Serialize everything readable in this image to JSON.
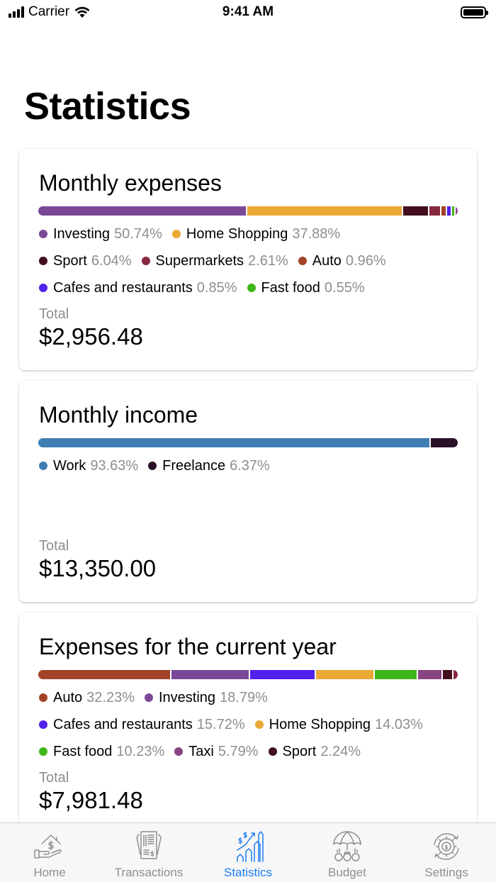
{
  "status_bar": {
    "carrier": "Carrier",
    "time": "9:41 AM"
  },
  "page": {
    "title": "Statistics"
  },
  "cards": [
    {
      "title": "Monthly expenses",
      "segments": [
        {
          "name": "Investing",
          "pct": 50.74,
          "color": "#7b4898"
        },
        {
          "name": "Home Shopping",
          "pct": 37.88,
          "color": "#eaa834"
        },
        {
          "name": "Sport",
          "pct": 6.04,
          "color": "#420f1e"
        },
        {
          "name": "Supermarkets",
          "pct": 2.61,
          "color": "#86283f"
        },
        {
          "name": "Auto",
          "pct": 0.96,
          "color": "#a24226"
        },
        {
          "name": "Cafes and restaurants",
          "pct": 0.85,
          "color": "#5221eb"
        },
        {
          "name": "Fast food",
          "pct": 0.55,
          "color": "#3eb518"
        },
        {
          "name": "",
          "pct": 0.37,
          "color": "#8a4a8e"
        }
      ],
      "legend_rows": [
        [
          {
            "name": "Investing",
            "pct_label": "50.74%",
            "color": "#7b4898"
          },
          {
            "name": "Home Shopping",
            "pct_label": "37.88%",
            "color": "#eaa834"
          }
        ],
        [
          {
            "name": "Sport",
            "pct_label": "6.04%",
            "color": "#420f1e"
          },
          {
            "name": "Supermarkets",
            "pct_label": "2.61%",
            "color": "#86283f"
          },
          {
            "name": "Auto",
            "pct_label": "0.96%",
            "color": "#a24226"
          }
        ],
        [
          {
            "name": "Cafes and restaurants",
            "pct_label": "0.85%",
            "color": "#5221eb"
          },
          {
            "name": "Fast food",
            "pct_label": "0.55%",
            "color": "#3eb518"
          }
        ]
      ],
      "total_label": "Total",
      "total_value": "$2,956.48"
    },
    {
      "title": "Monthly income",
      "segments": [
        {
          "name": "Work",
          "pct": 93.63,
          "color": "#3f7db3"
        },
        {
          "name": "Freelance",
          "pct": 6.37,
          "color": "#2a1129"
        }
      ],
      "legend_rows": [
        [
          {
            "name": "Work",
            "pct_label": "93.63%",
            "color": "#3f7db3"
          },
          {
            "name": "Freelance",
            "pct_label": "6.37%",
            "color": "#2a1129"
          }
        ]
      ],
      "total_label": "Total",
      "total_value": "$13,350.00"
    },
    {
      "title": "Expenses for the current year",
      "segments": [
        {
          "name": "Auto",
          "pct": 32.23,
          "color": "#a24226"
        },
        {
          "name": "Investing",
          "pct": 18.79,
          "color": "#7b4898"
        },
        {
          "name": "Cafes and restaurants",
          "pct": 15.72,
          "color": "#5221eb"
        },
        {
          "name": "Home Shopping",
          "pct": 14.03,
          "color": "#eaa834"
        },
        {
          "name": "Fast food",
          "pct": 10.23,
          "color": "#3eb518"
        },
        {
          "name": "Taxi",
          "pct": 5.79,
          "color": "#874582"
        },
        {
          "name": "Sport",
          "pct": 2.24,
          "color": "#420f1e"
        },
        {
          "name": "",
          "pct": 0.97,
          "color": "#86283f"
        }
      ],
      "legend_rows": [
        [
          {
            "name": "Auto",
            "pct_label": "32.23%",
            "color": "#a24226"
          },
          {
            "name": "Investing",
            "pct_label": "18.79%",
            "color": "#7b4898"
          }
        ],
        [
          {
            "name": "Cafes and restaurants",
            "pct_label": "15.72%",
            "color": "#5221eb"
          },
          {
            "name": "Home Shopping",
            "pct_label": "14.03%",
            "color": "#eaa834"
          }
        ],
        [
          {
            "name": "Fast food",
            "pct_label": "10.23%",
            "color": "#3eb518"
          },
          {
            "name": "Taxi",
            "pct_label": "5.79%",
            "color": "#874582"
          },
          {
            "name": "Sport",
            "pct_label": "2.24%",
            "color": "#420f1e"
          }
        ]
      ],
      "total_label": "Total",
      "total_value": "$7,981.48"
    }
  ],
  "tab_bar": {
    "accent": "#1a7cf5",
    "inactive": "#8e8e93",
    "tabs": [
      {
        "label": "Home",
        "icon": "home-money-icon",
        "active": false
      },
      {
        "label": "Transactions",
        "icon": "receipt-icon",
        "active": false
      },
      {
        "label": "Statistics",
        "icon": "growth-chart-icon",
        "active": true
      },
      {
        "label": "Budget",
        "icon": "umbrella-money-icon",
        "active": false
      },
      {
        "label": "Settings",
        "icon": "money-gear-icon",
        "active": false
      }
    ]
  }
}
